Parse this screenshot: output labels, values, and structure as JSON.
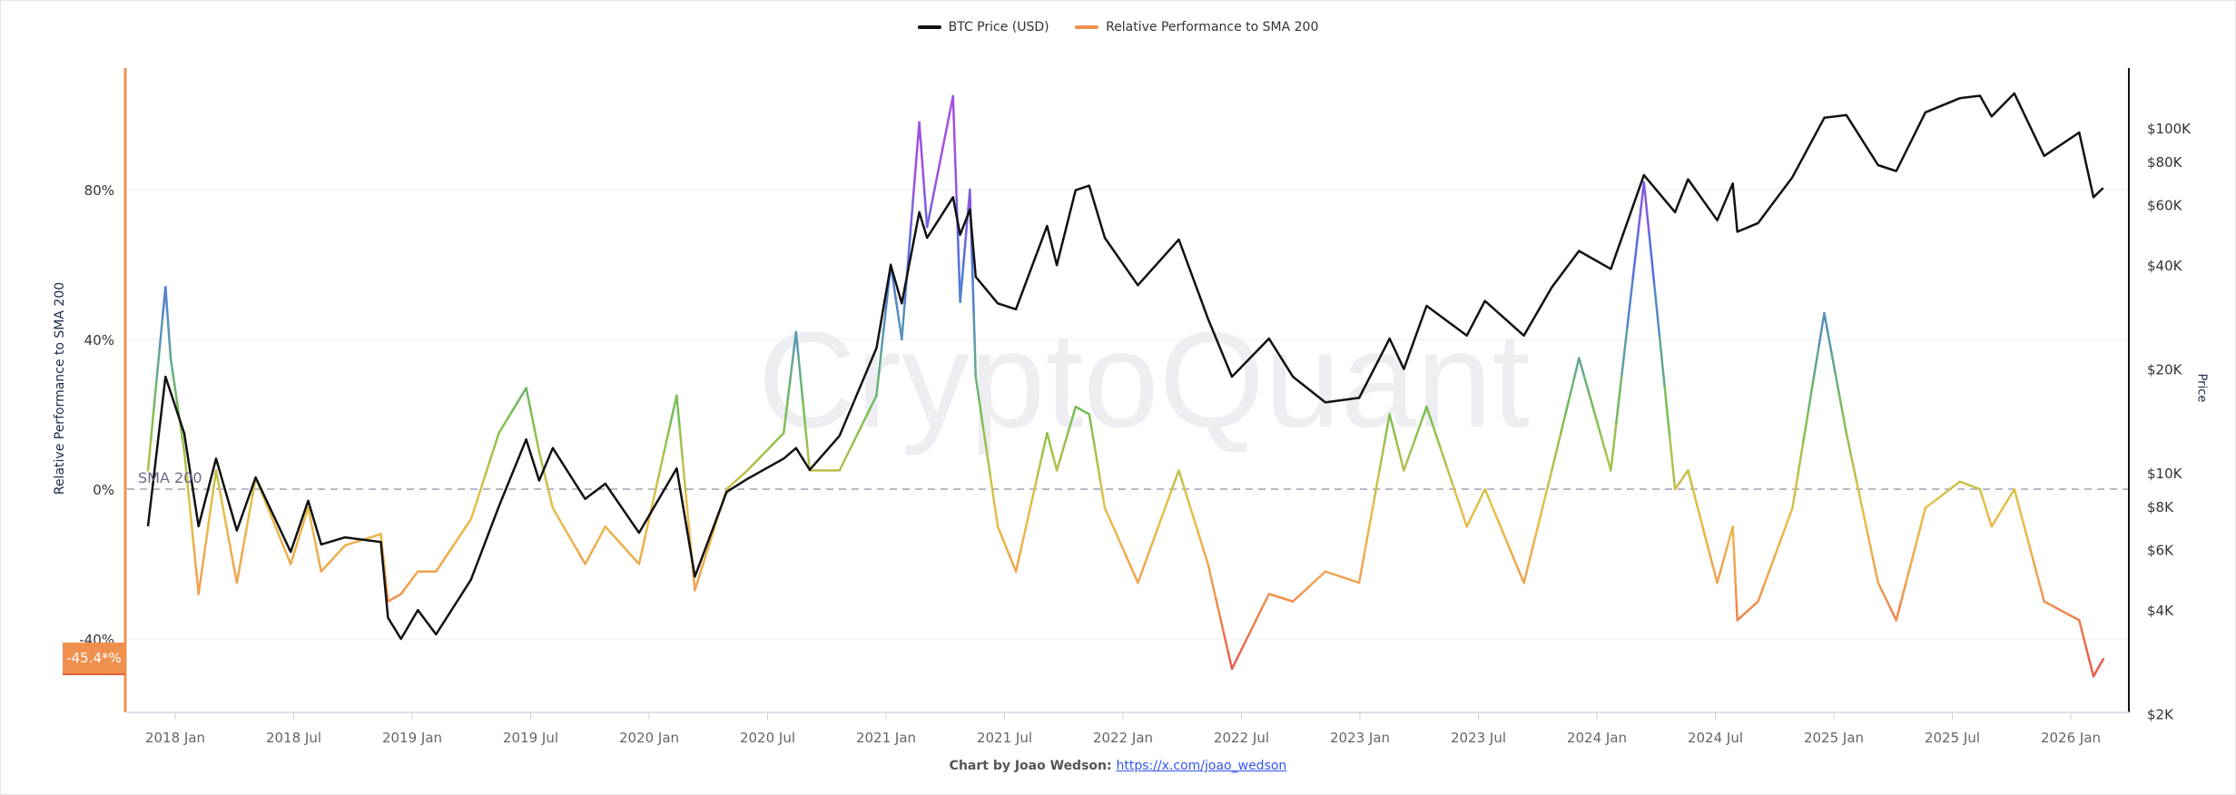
{
  "legend": [
    {
      "label": "BTC Price (USD)",
      "color": "#111111"
    },
    {
      "label": "Relative Performance to SMA 200",
      "color": "#f0904f"
    }
  ],
  "watermark": "CryptoQuant",
  "footer": {
    "prefix": "Chart by Joao Wedson:",
    "link": "https://x.com/joao_wedson"
  },
  "chart_data": {
    "type": "line",
    "y_left": {
      "label": "Relative Performance to SMA 200",
      "ticks": [
        "80%",
        "40%",
        "0%",
        "-40%"
      ],
      "tick_values": [
        80,
        40,
        0,
        -40
      ],
      "range": [
        -60,
        120
      ]
    },
    "y_right": {
      "label": "Price",
      "scale": "log",
      "ticks": [
        "$100K",
        "$80K",
        "$60K",
        "$40K",
        "$20K",
        "$10K",
        "$8K",
        "$6K",
        "$4K",
        "$2K"
      ],
      "tick_values": [
        100000,
        80000,
        60000,
        40000,
        20000,
        10000,
        8000,
        6000,
        4000,
        2000
      ],
      "range": [
        2000,
        140000
      ]
    },
    "x_ticks": [
      "2018 Jan",
      "2018 Jul",
      "2019 Jan",
      "2019 Jul",
      "2020 Jan",
      "2020 Jul",
      "2021 Jan",
      "2021 Jul",
      "2022 Jan",
      "2022 Jul",
      "2023 Jan",
      "2023 Jul",
      "2024 Jan",
      "2024 Jul",
      "2025 Jan",
      "2025 Jul",
      "2026 Jan"
    ],
    "reference_line": {
      "label": "SMA 200",
      "value": 0
    },
    "current_value_label": "-45.4*%",
    "grid": true,
    "legend_position": "top",
    "color_scale": [
      [
        -45,
        "#e8604c"
      ],
      [
        -25,
        "#f0a050"
      ],
      [
        -5,
        "#e8c048"
      ],
      [
        20,
        "#78c050"
      ],
      [
        40,
        "#5a9ab0"
      ],
      [
        60,
        "#5070e0"
      ],
      [
        85,
        "#a050e0"
      ]
    ],
    "series": [
      {
        "name": "BTC Price (USD)",
        "axis": "right",
        "points": [
          [
            "2017-11-20",
            7000
          ],
          [
            "2017-12-17",
            19000
          ],
          [
            "2018-01-15",
            13000
          ],
          [
            "2018-02-06",
            7000
          ],
          [
            "2018-03-05",
            11000
          ],
          [
            "2018-04-06",
            6800
          ],
          [
            "2018-05-05",
            9700
          ],
          [
            "2018-06-28",
            5900
          ],
          [
            "2018-07-25",
            8300
          ],
          [
            "2018-08-14",
            6200
          ],
          [
            "2018-09-20",
            6500
          ],
          [
            "2018-11-14",
            6300
          ],
          [
            "2018-11-25",
            3800
          ],
          [
            "2018-12-15",
            3300
          ],
          [
            "2019-01-10",
            4000
          ],
          [
            "2019-02-07",
            3400
          ],
          [
            "2019-04-02",
            4900
          ],
          [
            "2019-05-15",
            8000
          ],
          [
            "2019-06-26",
            12500
          ],
          [
            "2019-07-16",
            9500
          ],
          [
            "2019-08-06",
            11800
          ],
          [
            "2019-09-25",
            8400
          ],
          [
            "2019-10-26",
            9300
          ],
          [
            "2019-12-17",
            6700
          ],
          [
            "2020-02-13",
            10300
          ],
          [
            "2020-03-12",
            5000
          ],
          [
            "2020-04-30",
            8800
          ],
          [
            "2020-06-01",
            9600
          ],
          [
            "2020-07-27",
            11000
          ],
          [
            "2020-08-15",
            11800
          ],
          [
            "2020-09-05",
            10200
          ],
          [
            "2020-10-21",
            12800
          ],
          [
            "2020-12-17",
            23000
          ],
          [
            "2021-01-08",
            40000
          ],
          [
            "2021-01-25",
            31000
          ],
          [
            "2021-02-21",
            57000
          ],
          [
            "2021-03-05",
            48000
          ],
          [
            "2021-04-14",
            63000
          ],
          [
            "2021-04-25",
            49000
          ],
          [
            "2021-05-10",
            58000
          ],
          [
            "2021-05-19",
            37000
          ],
          [
            "2021-06-22",
            31000
          ],
          [
            "2021-07-20",
            29800
          ],
          [
            "2021-09-06",
            52000
          ],
          [
            "2021-09-21",
            40000
          ],
          [
            "2021-10-20",
            66000
          ],
          [
            "2021-11-10",
            68000
          ],
          [
            "2021-12-04",
            48000
          ],
          [
            "2022-01-24",
            35000
          ],
          [
            "2022-03-28",
            47500
          ],
          [
            "2022-05-12",
            28000
          ],
          [
            "2022-06-18",
            19000
          ],
          [
            "2022-08-14",
            24500
          ],
          [
            "2022-09-20",
            19000
          ],
          [
            "2022-11-09",
            16000
          ],
          [
            "2022-12-31",
            16500
          ],
          [
            "2023-02-16",
            24500
          ],
          [
            "2023-03-10",
            20000
          ],
          [
            "2023-04-14",
            30500
          ],
          [
            "2023-06-15",
            25000
          ],
          [
            "2023-07-13",
            31500
          ],
          [
            "2023-09-11",
            25000
          ],
          [
            "2023-10-24",
            34500
          ],
          [
            "2023-12-05",
            44000
          ],
          [
            "2024-01-23",
            39000
          ],
          [
            "2024-03-14",
            73000
          ],
          [
            "2024-05-01",
            57000
          ],
          [
            "2024-05-21",
            71000
          ],
          [
            "2024-07-05",
            54000
          ],
          [
            "2024-07-29",
            69000
          ],
          [
            "2024-08-05",
            50000
          ],
          [
            "2024-09-06",
            53000
          ],
          [
            "2024-10-29",
            72000
          ],
          [
            "2024-12-17",
            107000
          ],
          [
            "2025-01-20",
            109000
          ],
          [
            "2025-03-10",
            78000
          ],
          [
            "2025-04-07",
            75000
          ],
          [
            "2025-05-22",
            111000
          ],
          [
            "2025-07-14",
            122000
          ],
          [
            "2025-08-14",
            124000
          ],
          [
            "2025-09-01",
            108000
          ],
          [
            "2025-10-06",
            126000
          ],
          [
            "2025-11-21",
            83000
          ],
          [
            "2026-01-14",
            97000
          ],
          [
            "2026-02-05",
            63000
          ],
          [
            "2026-02-20",
            67000
          ]
        ]
      },
      {
        "name": "Relative Performance to SMA 200",
        "axis": "left",
        "points": [
          [
            "2017-11-20",
            5
          ],
          [
            "2017-12-17",
            54
          ],
          [
            "2017-12-25",
            35
          ],
          [
            "2018-01-15",
            10
          ],
          [
            "2018-02-06",
            -28
          ],
          [
            "2018-03-05",
            5
          ],
          [
            "2018-04-06",
            -25
          ],
          [
            "2018-05-05",
            3
          ],
          [
            "2018-06-28",
            -20
          ],
          [
            "2018-07-25",
            -5
          ],
          [
            "2018-08-14",
            -22
          ],
          [
            "2018-09-20",
            -15
          ],
          [
            "2018-11-14",
            -12
          ],
          [
            "2018-11-25",
            -30
          ],
          [
            "2018-12-15",
            -28
          ],
          [
            "2019-01-10",
            -22
          ],
          [
            "2019-02-07",
            -22
          ],
          [
            "2019-04-02",
            -8
          ],
          [
            "2019-05-15",
            15
          ],
          [
            "2019-06-26",
            27
          ],
          [
            "2019-07-16",
            10
          ],
          [
            "2019-08-06",
            -5
          ],
          [
            "2019-09-25",
            -20
          ],
          [
            "2019-10-26",
            -10
          ],
          [
            "2019-12-17",
            -20
          ],
          [
            "2020-02-13",
            25
          ],
          [
            "2020-03-12",
            -27
          ],
          [
            "2020-04-30",
            0
          ],
          [
            "2020-06-01",
            5
          ],
          [
            "2020-07-27",
            15
          ],
          [
            "2020-08-15",
            42
          ],
          [
            "2020-09-05",
            5
          ],
          [
            "2020-10-21",
            5
          ],
          [
            "2020-12-17",
            25
          ],
          [
            "2021-01-08",
            60
          ],
          [
            "2021-01-25",
            40
          ],
          [
            "2021-02-21",
            98
          ],
          [
            "2021-03-05",
            70
          ],
          [
            "2021-04-14",
            105
          ],
          [
            "2021-04-25",
            50
          ],
          [
            "2021-05-10",
            80
          ],
          [
            "2021-05-19",
            30
          ],
          [
            "2021-06-22",
            -10
          ],
          [
            "2021-07-20",
            -22
          ],
          [
            "2021-09-06",
            15
          ],
          [
            "2021-09-21",
            5
          ],
          [
            "2021-10-20",
            22
          ],
          [
            "2021-11-10",
            20
          ],
          [
            "2021-12-04",
            -5
          ],
          [
            "2022-01-24",
            -25
          ],
          [
            "2022-03-28",
            5
          ],
          [
            "2022-05-12",
            -20
          ],
          [
            "2022-06-18",
            -48
          ],
          [
            "2022-08-14",
            -28
          ],
          [
            "2022-09-20",
            -30
          ],
          [
            "2022-11-09",
            -22
          ],
          [
            "2022-12-31",
            -25
          ],
          [
            "2023-02-16",
            20
          ],
          [
            "2023-03-10",
            5
          ],
          [
            "2023-04-14",
            22
          ],
          [
            "2023-06-15",
            -10
          ],
          [
            "2023-07-13",
            0
          ],
          [
            "2023-09-11",
            -25
          ],
          [
            "2023-10-24",
            5
          ],
          [
            "2023-12-05",
            35
          ],
          [
            "2024-01-23",
            5
          ],
          [
            "2024-03-14",
            82
          ],
          [
            "2024-05-01",
            0
          ],
          [
            "2024-05-21",
            5
          ],
          [
            "2024-07-05",
            -25
          ],
          [
            "2024-07-29",
            -10
          ],
          [
            "2024-08-05",
            -35
          ],
          [
            "2024-09-06",
            -30
          ],
          [
            "2024-10-29",
            -5
          ],
          [
            "2024-12-17",
            47
          ],
          [
            "2025-01-20",
            15
          ],
          [
            "2025-03-10",
            -25
          ],
          [
            "2025-04-07",
            -35
          ],
          [
            "2025-05-22",
            -5
          ],
          [
            "2025-07-14",
            2
          ],
          [
            "2025-08-14",
            0
          ],
          [
            "2025-09-01",
            -10
          ],
          [
            "2025-10-06",
            0
          ],
          [
            "2025-11-21",
            -30
          ],
          [
            "2026-01-14",
            -35
          ],
          [
            "2026-02-05",
            -50
          ],
          [
            "2026-02-20",
            -45.4
          ]
        ]
      }
    ]
  }
}
